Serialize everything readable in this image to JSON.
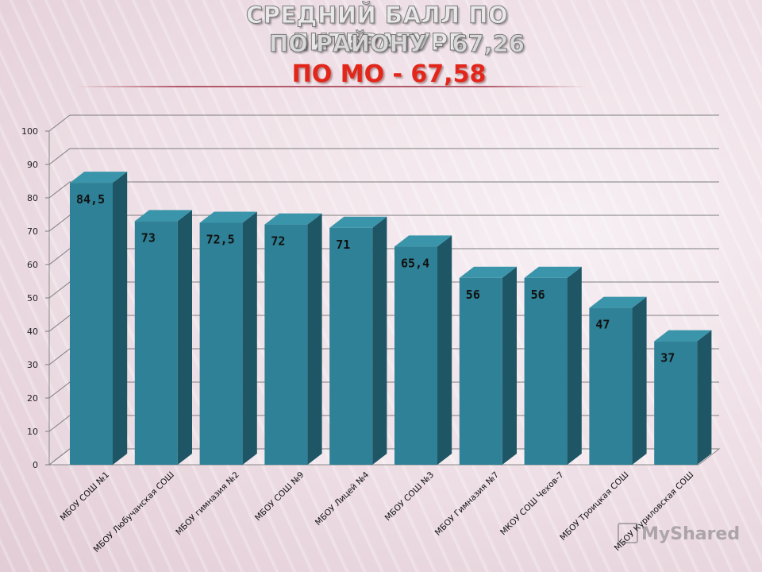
{
  "title": {
    "line1": "СРЕДНИЙ БАЛЛ ПО ЛИТЕРАТУРЕ",
    "line2": "ПО РАЙОНУ - 67,26",
    "line3": "ПО МО - 67,58"
  },
  "watermark": "MyShared",
  "colors": {
    "bar_front": "#2e8196",
    "bar_side": "#1e5665",
    "bar_top": "#3a95aa",
    "title_red": "#e3261a"
  },
  "chart_data": {
    "type": "bar",
    "categories": [
      "МБОУ СОШ №1",
      "МБОУ Любучанская СОШ",
      "МБОУ гимназия №2",
      "МБОУ СОШ №9",
      "МБОУ Лицей №4",
      "МБОУ СОШ №3",
      "МБОУ Гимназия №7",
      "МКОУ СОШ Чехов-7",
      "МБОУ Троицкая СОШ",
      "МБОУ Куриловская СОШ"
    ],
    "values": [
      84.5,
      73,
      72.5,
      72,
      71,
      65.4,
      56,
      56,
      47,
      37
    ],
    "data_labels": [
      "84,5",
      "73",
      "72,5",
      "72",
      "71",
      "65,4",
      "56",
      "56",
      "47",
      "37"
    ],
    "yticks": [
      "0",
      "10",
      "20",
      "30",
      "40",
      "50",
      "60",
      "70",
      "80",
      "90",
      "100"
    ],
    "ylim": [
      0,
      100
    ],
    "grid": true,
    "style": "3d-column"
  }
}
